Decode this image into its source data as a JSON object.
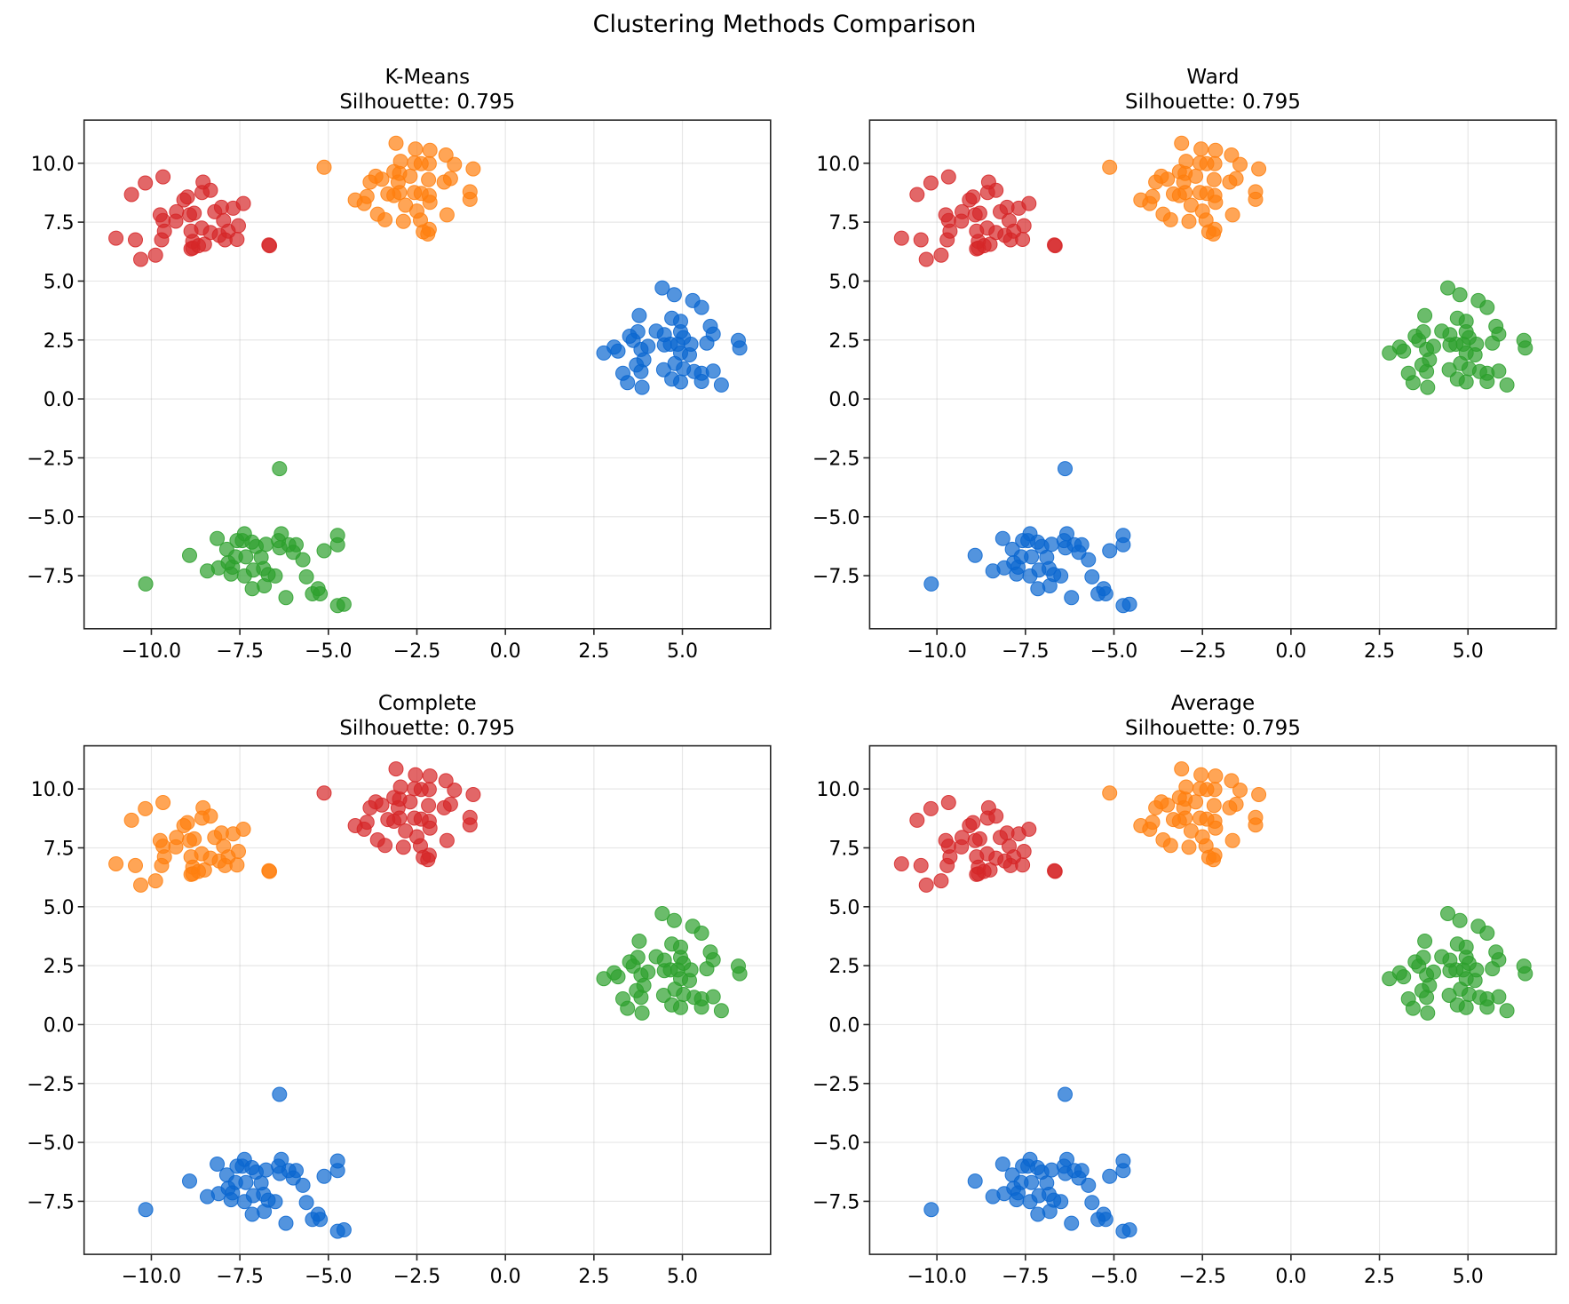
{
  "chart_data": {
    "type": "scatter",
    "title": "Clustering Methods Comparison",
    "xlim": [
      -11.9,
      7.49
    ],
    "ylim": [
      -9.75,
      11.83
    ],
    "xticks": [
      -10.0,
      -7.5,
      -5.0,
      -2.5,
      0.0,
      2.5,
      5.0
    ],
    "xtick_labels": [
      "−10.0",
      "−7.5",
      "−5.0",
      "−2.5",
      "0.0",
      "2.5",
      "5.0"
    ],
    "yticks": [
      -7.5,
      -5.0,
      -2.5,
      0.0,
      2.5,
      5.0,
      7.5,
      10.0
    ],
    "ytick_labels": [
      "−7.5",
      "−5.0",
      "−2.5",
      "0.0",
      "2.5",
      "5.0",
      "7.5",
      "10.0"
    ],
    "grid": true,
    "point_alpha": 0.7,
    "palette": {
      "red": "#d62728",
      "orange": "#ff7f0e",
      "green": "#2ca02c",
      "blue": "#0a66d0"
    },
    "groups": {
      "A": [
        [
          -11.0,
          6.82
        ],
        [
          -10.56,
          8.67
        ],
        [
          -10.17,
          9.16
        ],
        [
          -9.67,
          9.42
        ],
        [
          -10.45,
          6.75
        ],
        [
          -10.3,
          5.92
        ],
        [
          -9.88,
          6.1
        ],
        [
          -9.75,
          7.81
        ],
        [
          -9.67,
          7.57
        ],
        [
          -9.63,
          7.12
        ],
        [
          -9.71,
          6.75
        ],
        [
          -9.29,
          7.94
        ],
        [
          -9.31,
          7.54
        ],
        [
          -9.08,
          8.44
        ],
        [
          -8.98,
          8.57
        ],
        [
          -8.92,
          7.81
        ],
        [
          -8.79,
          7.88
        ],
        [
          -8.88,
          7.12
        ],
        [
          -8.83,
          6.68
        ],
        [
          -8.88,
          6.37
        ],
        [
          -8.67,
          6.5
        ],
        [
          -8.5,
          6.56
        ],
        [
          -8.54,
          9.2
        ],
        [
          -8.57,
          8.76
        ],
        [
          -8.33,
          8.85
        ],
        [
          -8.58,
          7.25
        ],
        [
          -8.33,
          7.06
        ],
        [
          -8.21,
          7.94
        ],
        [
          -8.02,
          8.13
        ],
        [
          -8.08,
          6.94
        ],
        [
          -7.96,
          7.57
        ],
        [
          -7.92,
          6.75
        ],
        [
          -7.69,
          8.09
        ],
        [
          -7.4,
          8.29
        ],
        [
          -7.54,
          7.35
        ],
        [
          -7.58,
          6.77
        ],
        [
          -7.83,
          7.12
        ],
        [
          -6.68,
          6.53
        ],
        [
          -6.66,
          6.5
        ],
        [
          -8.83,
          6.4
        ]
      ],
      "B": [
        [
          -5.12,
          9.83
        ],
        [
          -3.09,
          10.85
        ],
        [
          -2.54,
          10.6
        ],
        [
          -2.13,
          10.55
        ],
        [
          -1.68,
          10.35
        ],
        [
          -0.91,
          9.76
        ],
        [
          -1.44,
          9.95
        ],
        [
          -2.96,
          10.08
        ],
        [
          -2.57,
          10.01
        ],
        [
          -2.38,
          9.98
        ],
        [
          -2.15,
          9.98
        ],
        [
          -3.15,
          9.64
        ],
        [
          -2.99,
          9.57
        ],
        [
          -3.66,
          9.45
        ],
        [
          -3.49,
          9.32
        ],
        [
          -3.82,
          9.2
        ],
        [
          -2.69,
          9.45
        ],
        [
          -2.17,
          9.3
        ],
        [
          -1.55,
          9.35
        ],
        [
          -1.73,
          9.2
        ],
        [
          -3.03,
          9.2
        ],
        [
          -4.24,
          8.44
        ],
        [
          -3.91,
          8.59
        ],
        [
          -3.99,
          8.29
        ],
        [
          -3.32,
          8.7
        ],
        [
          -3.15,
          8.63
        ],
        [
          -2.99,
          8.76
        ],
        [
          -2.57,
          8.76
        ],
        [
          -2.38,
          8.72
        ],
        [
          -2.15,
          8.63
        ],
        [
          -2.13,
          8.34
        ],
        [
          -1.0,
          8.79
        ],
        [
          -1.0,
          8.47
        ],
        [
          -2.82,
          8.22
        ],
        [
          -3.61,
          7.84
        ],
        [
          -3.4,
          7.6
        ],
        [
          -2.88,
          7.53
        ],
        [
          -2.5,
          7.97
        ],
        [
          -2.4,
          7.59
        ],
        [
          -1.65,
          7.81
        ],
        [
          -2.32,
          7.09
        ],
        [
          -2.15,
          7.19
        ],
        [
          -2.19,
          7.0
        ]
      ],
      "C": [
        [
          4.43,
          4.71
        ],
        [
          4.77,
          4.42
        ],
        [
          5.29,
          4.17
        ],
        [
          5.54,
          3.88
        ],
        [
          3.78,
          3.54
        ],
        [
          4.7,
          3.42
        ],
        [
          4.95,
          3.29
        ],
        [
          5.79,
          3.08
        ],
        [
          5.87,
          2.75
        ],
        [
          3.74,
          2.85
        ],
        [
          4.26,
          2.88
        ],
        [
          4.49,
          2.73
        ],
        [
          4.95,
          2.85
        ],
        [
          5.03,
          2.6
        ],
        [
          3.51,
          2.66
        ],
        [
          3.61,
          2.48
        ],
        [
          4.03,
          2.23
        ],
        [
          4.49,
          2.29
        ],
        [
          4.66,
          2.32
        ],
        [
          4.87,
          2.32
        ],
        [
          5.24,
          2.32
        ],
        [
          5.69,
          2.37
        ],
        [
          6.58,
          2.48
        ],
        [
          6.62,
          2.16
        ],
        [
          2.78,
          1.95
        ],
        [
          3.07,
          2.2
        ],
        [
          3.18,
          2.03
        ],
        [
          3.83,
          2.1
        ],
        [
          4.95,
          1.95
        ],
        [
          5.2,
          1.87
        ],
        [
          3.91,
          1.66
        ],
        [
          3.7,
          1.44
        ],
        [
          4.79,
          1.5
        ],
        [
          3.83,
          1.16
        ],
        [
          4.47,
          1.24
        ],
        [
          5.03,
          1.28
        ],
        [
          5.33,
          1.16
        ],
        [
          5.54,
          1.09
        ],
        [
          5.87,
          1.18
        ],
        [
          3.32,
          1.09
        ],
        [
          3.45,
          0.69
        ],
        [
          4.7,
          0.84
        ],
        [
          4.95,
          0.72
        ],
        [
          5.54,
          0.74
        ],
        [
          6.1,
          0.59
        ],
        [
          3.86,
          0.49
        ]
      ],
      "D": [
        [
          -6.38,
          -2.96
        ],
        [
          -10.16,
          -7.85
        ],
        [
          -8.92,
          -6.64
        ],
        [
          -8.42,
          -7.3
        ],
        [
          -8.14,
          -5.92
        ],
        [
          -8.1,
          -7.17
        ],
        [
          -7.87,
          -6.38
        ],
        [
          -7.83,
          -6.95
        ],
        [
          -7.71,
          -7.14
        ],
        [
          -7.75,
          -7.43
        ],
        [
          -7.58,
          -6.01
        ],
        [
          -7.37,
          -5.72
        ],
        [
          -7.43,
          -6.01
        ],
        [
          -7.33,
          -6.7
        ],
        [
          -7.62,
          -6.7
        ],
        [
          -7.37,
          -7.51
        ],
        [
          -7.16,
          -6.07
        ],
        [
          -7.04,
          -6.26
        ],
        [
          -6.9,
          -6.72
        ],
        [
          -6.76,
          -6.17
        ],
        [
          -7.12,
          -7.26
        ],
        [
          -6.83,
          -7.2
        ],
        [
          -6.7,
          -7.45
        ],
        [
          -6.5,
          -7.51
        ],
        [
          -7.15,
          -8.05
        ],
        [
          -6.81,
          -7.93
        ],
        [
          -6.33,
          -5.72
        ],
        [
          -6.41,
          -6.01
        ],
        [
          -6.37,
          -6.32
        ],
        [
          -6.12,
          -6.19
        ],
        [
          -5.91,
          -6.19
        ],
        [
          -5.99,
          -6.51
        ],
        [
          -5.72,
          -6.82
        ],
        [
          -5.62,
          -7.55
        ],
        [
          -6.2,
          -8.43
        ],
        [
          -5.45,
          -8.27
        ],
        [
          -5.29,
          -8.05
        ],
        [
          -5.23,
          -8.27
        ],
        [
          -5.12,
          -6.44
        ],
        [
          -4.74,
          -5.79
        ],
        [
          -4.74,
          -6.19
        ],
        [
          -4.74,
          -8.77
        ],
        [
          -4.56,
          -8.71
        ]
      ]
    },
    "panels": [
      {
        "name": "kmeans",
        "title": "K-Means",
        "subtitle": "Silhouette: 0.795",
        "group_colors": {
          "A": "red",
          "B": "orange",
          "C": "blue",
          "D": "green"
        }
      },
      {
        "name": "ward",
        "title": "Ward",
        "subtitle": "Silhouette: 0.795",
        "group_colors": {
          "A": "red",
          "B": "orange",
          "C": "green",
          "D": "blue"
        }
      },
      {
        "name": "complete",
        "title": "Complete",
        "subtitle": "Silhouette: 0.795",
        "group_colors": {
          "A": "orange",
          "B": "red",
          "C": "green",
          "D": "blue"
        }
      },
      {
        "name": "average",
        "title": "Average",
        "subtitle": "Silhouette: 0.795",
        "group_colors": {
          "A": "red",
          "B": "orange",
          "C": "green",
          "D": "blue"
        }
      }
    ]
  }
}
